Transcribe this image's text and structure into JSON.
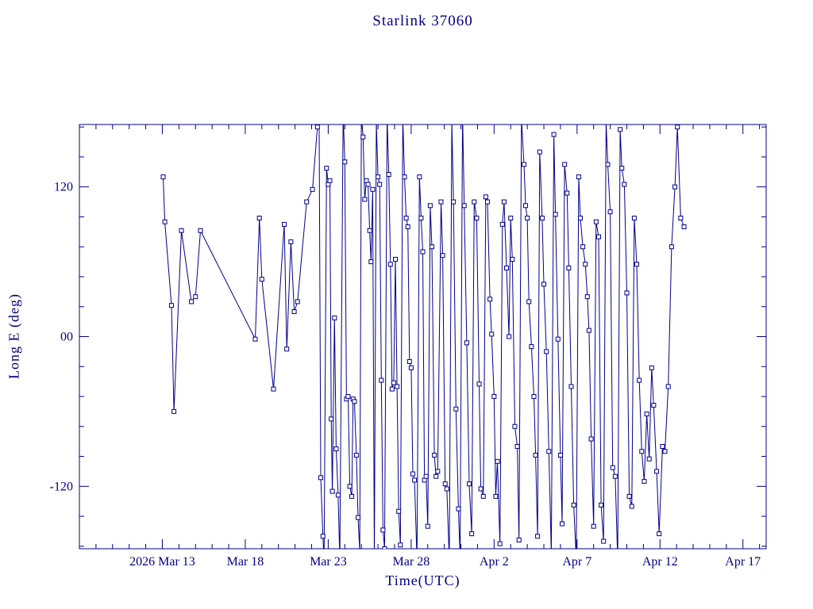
{
  "page": {
    "background": "#ffffff"
  },
  "chart_data": {
    "type": "line",
    "title": "Starlink 37060",
    "xlabel": "Time(UTC)",
    "ylabel": "Long E (deg)",
    "color": "#00008b",
    "marker": "open-square",
    "legend": "none",
    "grid": false,
    "x_unit": "days since 2026 Mar 8 00:00 UTC",
    "xlim": [
      0,
      41.4
    ],
    "ylim": [
      -170,
      170
    ],
    "x_major_ticks": [
      {
        "day": 5,
        "label": "2026 Mar 13"
      },
      {
        "day": 10,
        "label": "Mar 18"
      },
      {
        "day": 15,
        "label": "Mar 23"
      },
      {
        "day": 20,
        "label": "Mar 28"
      },
      {
        "day": 25,
        "label": "Apr  2"
      },
      {
        "day": 30,
        "label": "Apr  7"
      },
      {
        "day": 35,
        "label": "Apr 12"
      },
      {
        "day": 40,
        "label": "Apr 17"
      }
    ],
    "x_minor_step": 1,
    "y_major_ticks": [
      {
        "value": 120,
        "label": "120"
      },
      {
        "value": 0,
        "label": "00"
      },
      {
        "value": -120,
        "label": "-120"
      }
    ],
    "y_minor_step": 24,
    "points": [
      [
        5.05,
        128
      ],
      [
        5.15,
        92
      ],
      [
        5.55,
        25
      ],
      [
        5.7,
        -60
      ],
      [
        6.15,
        85
      ],
      [
        6.75,
        28
      ],
      [
        7.0,
        32
      ],
      [
        7.3,
        85
      ],
      [
        10.6,
        -2
      ],
      [
        10.85,
        95
      ],
      [
        11.0,
        46
      ],
      [
        11.7,
        -42
      ],
      [
        12.35,
        90
      ],
      [
        12.5,
        -10
      ],
      [
        12.75,
        76
      ],
      [
        12.95,
        20
      ],
      [
        13.15,
        28
      ],
      [
        13.7,
        108
      ],
      [
        14.05,
        118
      ],
      [
        14.35,
        168
      ],
      [
        14.45,
        179
      ],
      [
        14.55,
        -113
      ],
      [
        14.68,
        -160
      ],
      [
        14.75,
        -179
      ],
      [
        14.9,
        135
      ],
      [
        15.0,
        122
      ],
      [
        15.1,
        125
      ],
      [
        15.18,
        -66
      ],
      [
        15.25,
        -124
      ],
      [
        15.38,
        15
      ],
      [
        15.48,
        -90
      ],
      [
        15.6,
        -127
      ],
      [
        15.7,
        -179
      ],
      [
        15.9,
        179
      ],
      [
        16.0,
        140
      ],
      [
        16.1,
        -50
      ],
      [
        16.2,
        -48
      ],
      [
        16.3,
        -120
      ],
      [
        16.42,
        -128
      ],
      [
        16.5,
        -50
      ],
      [
        16.58,
        -52
      ],
      [
        16.7,
        -95
      ],
      [
        16.8,
        -145
      ],
      [
        16.9,
        -172
      ],
      [
        17.0,
        178
      ],
      [
        17.1,
        160
      ],
      [
        17.2,
        110
      ],
      [
        17.3,
        125
      ],
      [
        17.4,
        122
      ],
      [
        17.5,
        85
      ],
      [
        17.58,
        60
      ],
      [
        17.68,
        118
      ],
      [
        17.78,
        -179
      ],
      [
        17.9,
        172
      ],
      [
        18.0,
        128
      ],
      [
        18.1,
        122
      ],
      [
        18.2,
        -35
      ],
      [
        18.3,
        -155
      ],
      [
        18.4,
        -170
      ],
      [
        18.55,
        176
      ],
      [
        18.65,
        130
      ],
      [
        18.75,
        58
      ],
      [
        18.85,
        -42
      ],
      [
        18.95,
        -37
      ],
      [
        19.05,
        62
      ],
      [
        19.15,
        -40
      ],
      [
        19.25,
        -140
      ],
      [
        19.35,
        -167
      ],
      [
        19.5,
        174
      ],
      [
        19.6,
        128
      ],
      [
        19.7,
        95
      ],
      [
        19.8,
        88
      ],
      [
        19.9,
        -20
      ],
      [
        20.0,
        -25
      ],
      [
        20.1,
        -110
      ],
      [
        20.2,
        -115
      ],
      [
        20.35,
        -179
      ],
      [
        20.5,
        128
      ],
      [
        20.6,
        95
      ],
      [
        20.7,
        68
      ],
      [
        20.8,
        -115
      ],
      [
        20.9,
        -112
      ],
      [
        21.0,
        -152
      ],
      [
        21.15,
        105
      ],
      [
        21.25,
        72
      ],
      [
        21.4,
        -95
      ],
      [
        21.5,
        -112
      ],
      [
        21.6,
        -108
      ],
      [
        21.8,
        108
      ],
      [
        21.9,
        65
      ],
      [
        22.05,
        -118
      ],
      [
        22.15,
        -122
      ],
      [
        22.3,
        -179
      ],
      [
        22.45,
        172
      ],
      [
        22.55,
        108
      ],
      [
        22.7,
        -58
      ],
      [
        22.85,
        -138
      ],
      [
        22.95,
        -176
      ],
      [
        23.1,
        179
      ],
      [
        23.2,
        105
      ],
      [
        23.35,
        -5
      ],
      [
        23.5,
        -118
      ],
      [
        23.65,
        -158
      ],
      [
        23.8,
        108
      ],
      [
        23.95,
        95
      ],
      [
        24.1,
        -38
      ],
      [
        24.2,
        -122
      ],
      [
        24.35,
        -128
      ],
      [
        24.5,
        112
      ],
      [
        24.6,
        108
      ],
      [
        24.75,
        30
      ],
      [
        24.85,
        2
      ],
      [
        25.0,
        -48
      ],
      [
        25.1,
        -128
      ],
      [
        25.2,
        -100
      ],
      [
        25.35,
        -166
      ],
      [
        25.5,
        90
      ],
      [
        25.6,
        108
      ],
      [
        25.75,
        55
      ],
      [
        25.9,
        0
      ],
      [
        26.0,
        95
      ],
      [
        26.1,
        62
      ],
      [
        26.25,
        -72
      ],
      [
        26.4,
        -88
      ],
      [
        26.5,
        -163
      ],
      [
        26.65,
        174
      ],
      [
        26.8,
        138
      ],
      [
        26.9,
        105
      ],
      [
        27.0,
        95
      ],
      [
        27.1,
        28
      ],
      [
        27.25,
        -8
      ],
      [
        27.4,
        -48
      ],
      [
        27.5,
        -95
      ],
      [
        27.62,
        -160
      ],
      [
        27.75,
        148
      ],
      [
        27.9,
        95
      ],
      [
        28.0,
        42
      ],
      [
        28.15,
        -12
      ],
      [
        28.3,
        -92
      ],
      [
        28.45,
        -174
      ],
      [
        28.6,
        162
      ],
      [
        28.7,
        98
      ],
      [
        28.85,
        -2
      ],
      [
        29.0,
        -95
      ],
      [
        29.1,
        -150
      ],
      [
        29.25,
        138
      ],
      [
        29.4,
        115
      ],
      [
        29.5,
        55
      ],
      [
        29.65,
        -40
      ],
      [
        29.8,
        -135
      ],
      [
        29.95,
        -179
      ],
      [
        30.1,
        128
      ],
      [
        30.2,
        95
      ],
      [
        30.35,
        72
      ],
      [
        30.5,
        58
      ],
      [
        30.62,
        32
      ],
      [
        30.72,
        5
      ],
      [
        30.85,
        -82
      ],
      [
        31.0,
        -152
      ],
      [
        31.15,
        92
      ],
      [
        31.3,
        80
      ],
      [
        31.45,
        -135
      ],
      [
        31.6,
        -164
      ],
      [
        31.75,
        172
      ],
      [
        31.85,
        138
      ],
      [
        32.0,
        100
      ],
      [
        32.15,
        -105
      ],
      [
        32.3,
        -112
      ],
      [
        32.45,
        -179
      ],
      [
        32.6,
        166
      ],
      [
        32.7,
        135
      ],
      [
        32.85,
        122
      ],
      [
        33.0,
        35
      ],
      [
        33.15,
        -128
      ],
      [
        33.3,
        -136
      ],
      [
        33.45,
        95
      ],
      [
        33.6,
        58
      ],
      [
        33.75,
        -35
      ],
      [
        33.9,
        -92
      ],
      [
        34.05,
        -116
      ],
      [
        34.2,
        -62
      ],
      [
        34.35,
        -98
      ],
      [
        34.5,
        -25
      ],
      [
        34.62,
        -55
      ],
      [
        34.8,
        -108
      ],
      [
        34.95,
        -158
      ],
      [
        35.15,
        -88
      ],
      [
        35.3,
        -92
      ],
      [
        35.5,
        -40
      ],
      [
        35.7,
        72
      ],
      [
        35.9,
        120
      ],
      [
        36.05,
        168
      ],
      [
        36.25,
        95
      ],
      [
        36.45,
        88
      ]
    ]
  }
}
